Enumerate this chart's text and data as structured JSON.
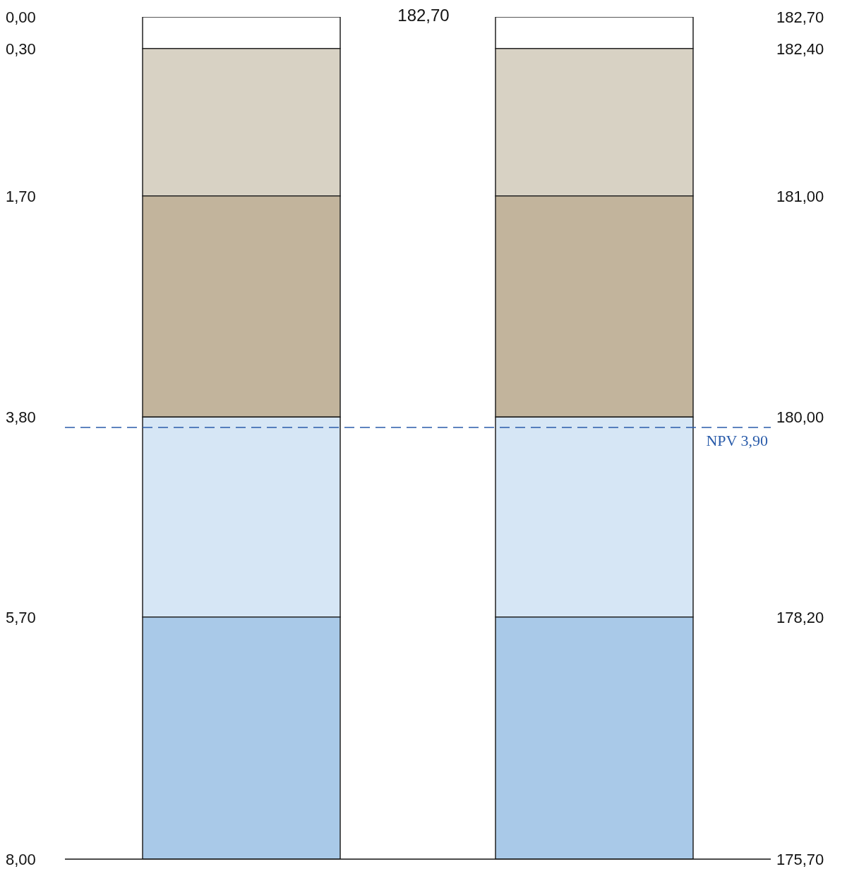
{
  "chart_data": {
    "type": "bar",
    "stacked": true,
    "categories": [
      null,
      null
    ],
    "series": [
      {
        "color": "#ffffff",
        "values": [
          0.3,
          0.3
        ]
      },
      {
        "color": "#d8d2c4",
        "values": [
          1.4,
          1.4
        ]
      },
      {
        "color": "#c2b49c",
        "values": [
          2.1,
          2.1
        ]
      },
      {
        "color": "#d6e6f5",
        "values": [
          1.9,
          1.9
        ]
      },
      {
        "color": "#a9c9e8",
        "values": [
          2.3,
          2.3
        ]
      }
    ],
    "ylim": [
      8,
      0
    ],
    "yticks": [
      {
        "value": 0,
        "label": "0,00"
      },
      {
        "value": 0.3,
        "label": "0,30"
      },
      {
        "value": 1.7,
        "label": "1,70"
      },
      {
        "value": 3.8,
        "label": "3,80"
      },
      {
        "value": 5.7,
        "label": "5,70"
      },
      {
        "value": 8,
        "label": "8,00"
      }
    ],
    "ref_lines": [
      {
        "axis": "y",
        "value": 3.9,
        "label": "NPV 3,90",
        "color": "#2a5caa",
        "line_style": "dashed"
      }
    ],
    "annotations": [
      "182,70",
      "182,70",
      "182,40",
      "181,00",
      "180,00",
      "178,20",
      "175,70"
    ],
    "grid": false,
    "legend": false
  }
}
